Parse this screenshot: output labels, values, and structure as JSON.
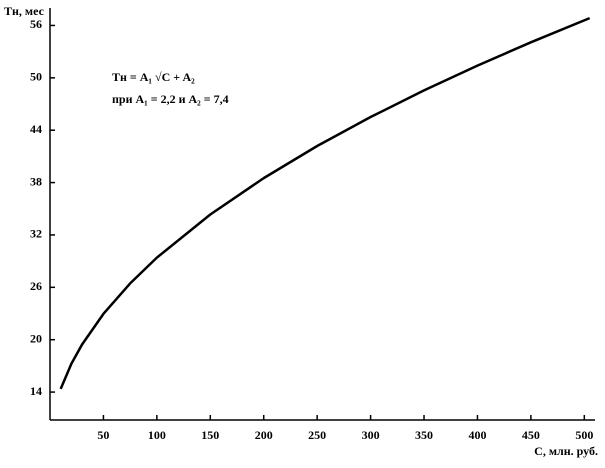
{
  "chart_data": {
    "type": "line",
    "y_label": "Tн, мес",
    "x_label": "C, млн. руб.",
    "annotations": [
      "Tн = A₁ √C + A₂",
      "при A₁ = 2,2 и A₂ = 7,4"
    ],
    "x": [
      10,
      20,
      30,
      50,
      75,
      100,
      150,
      200,
      250,
      300,
      350,
      400,
      450,
      505
    ],
    "series": [
      {
        "color": "#000000",
        "values": [
          14.36,
          17.24,
          19.45,
          22.96,
          26.45,
          29.4,
          34.34,
          38.51,
          42.19,
          45.51,
          48.56,
          51.4,
          54.07,
          56.84
        ]
      }
    ],
    "xlim": [
      0,
      510
    ],
    "xticks": [
      50,
      100,
      150,
      200,
      250,
      300,
      350,
      400,
      450,
      500
    ],
    "ylim": [
      10.8,
      58
    ],
    "yticks": [
      14,
      20,
      26,
      32,
      38,
      44,
      50,
      56
    ],
    "grid": false
  }
}
